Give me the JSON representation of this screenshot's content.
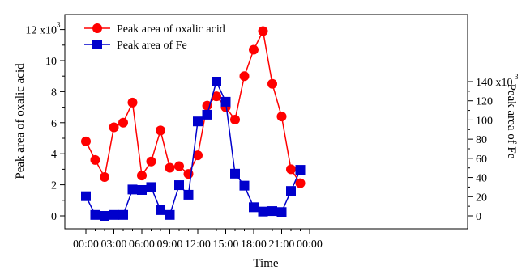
{
  "chart_data": {
    "type": "line",
    "xlabel": "Time",
    "y_left_label": "Peak area of oxalic acid",
    "y_right_label": "Peak area of Fe",
    "x_tick_labels": [
      "00:00",
      "03:00",
      "06:00",
      "09:00",
      "12:00",
      "15:00",
      "18:00",
      "21:00",
      "00:00"
    ],
    "y_left_ticks": [
      "0",
      "2",
      "4",
      "6",
      "8",
      "10",
      "12 x10"
    ],
    "y_right_ticks": [
      "0",
      "20",
      "40",
      "60",
      "80",
      "100",
      "120",
      "140 x10"
    ],
    "y_left_multiplier_exp": "3",
    "y_right_multiplier_exp": "3",
    "y_left_lim": [
      0,
      12
    ],
    "y_right_lim": [
      0,
      140
    ],
    "x_hours": [
      0,
      1,
      2,
      3,
      4,
      5,
      6,
      7,
      8,
      9,
      10,
      11,
      12,
      13,
      14,
      15,
      16,
      17,
      18,
      19,
      20,
      21,
      22,
      23
    ],
    "series": [
      {
        "name": "Peak area of oxalic acid",
        "axis": "left",
        "color": "#ff0000",
        "marker": "circle",
        "values": [
          4.8,
          3.6,
          2.5,
          5.7,
          6.0,
          7.3,
          2.6,
          3.5,
          5.5,
          3.1,
          3.2,
          2.7,
          3.9,
          7.1,
          7.7,
          7.0,
          6.2,
          9.0,
          10.7,
          11.9,
          8.5,
          6.4,
          3.0,
          2.1
        ]
      },
      {
        "name": "Peak area of Fe",
        "axis": "right",
        "color": "#0000cc",
        "marker": "square",
        "values": [
          20.5,
          1,
          0,
          1,
          1,
          27.5,
          27,
          30,
          6,
          1,
          32,
          22,
          98.5,
          105.5,
          140,
          119,
          44,
          31.5,
          9,
          4.5,
          5,
          4,
          26,
          48
        ]
      }
    ],
    "legend": {
      "placement": "top-left",
      "labels": [
        "Peak area of oxalic acid",
        "Peak area of Fe"
      ]
    }
  }
}
